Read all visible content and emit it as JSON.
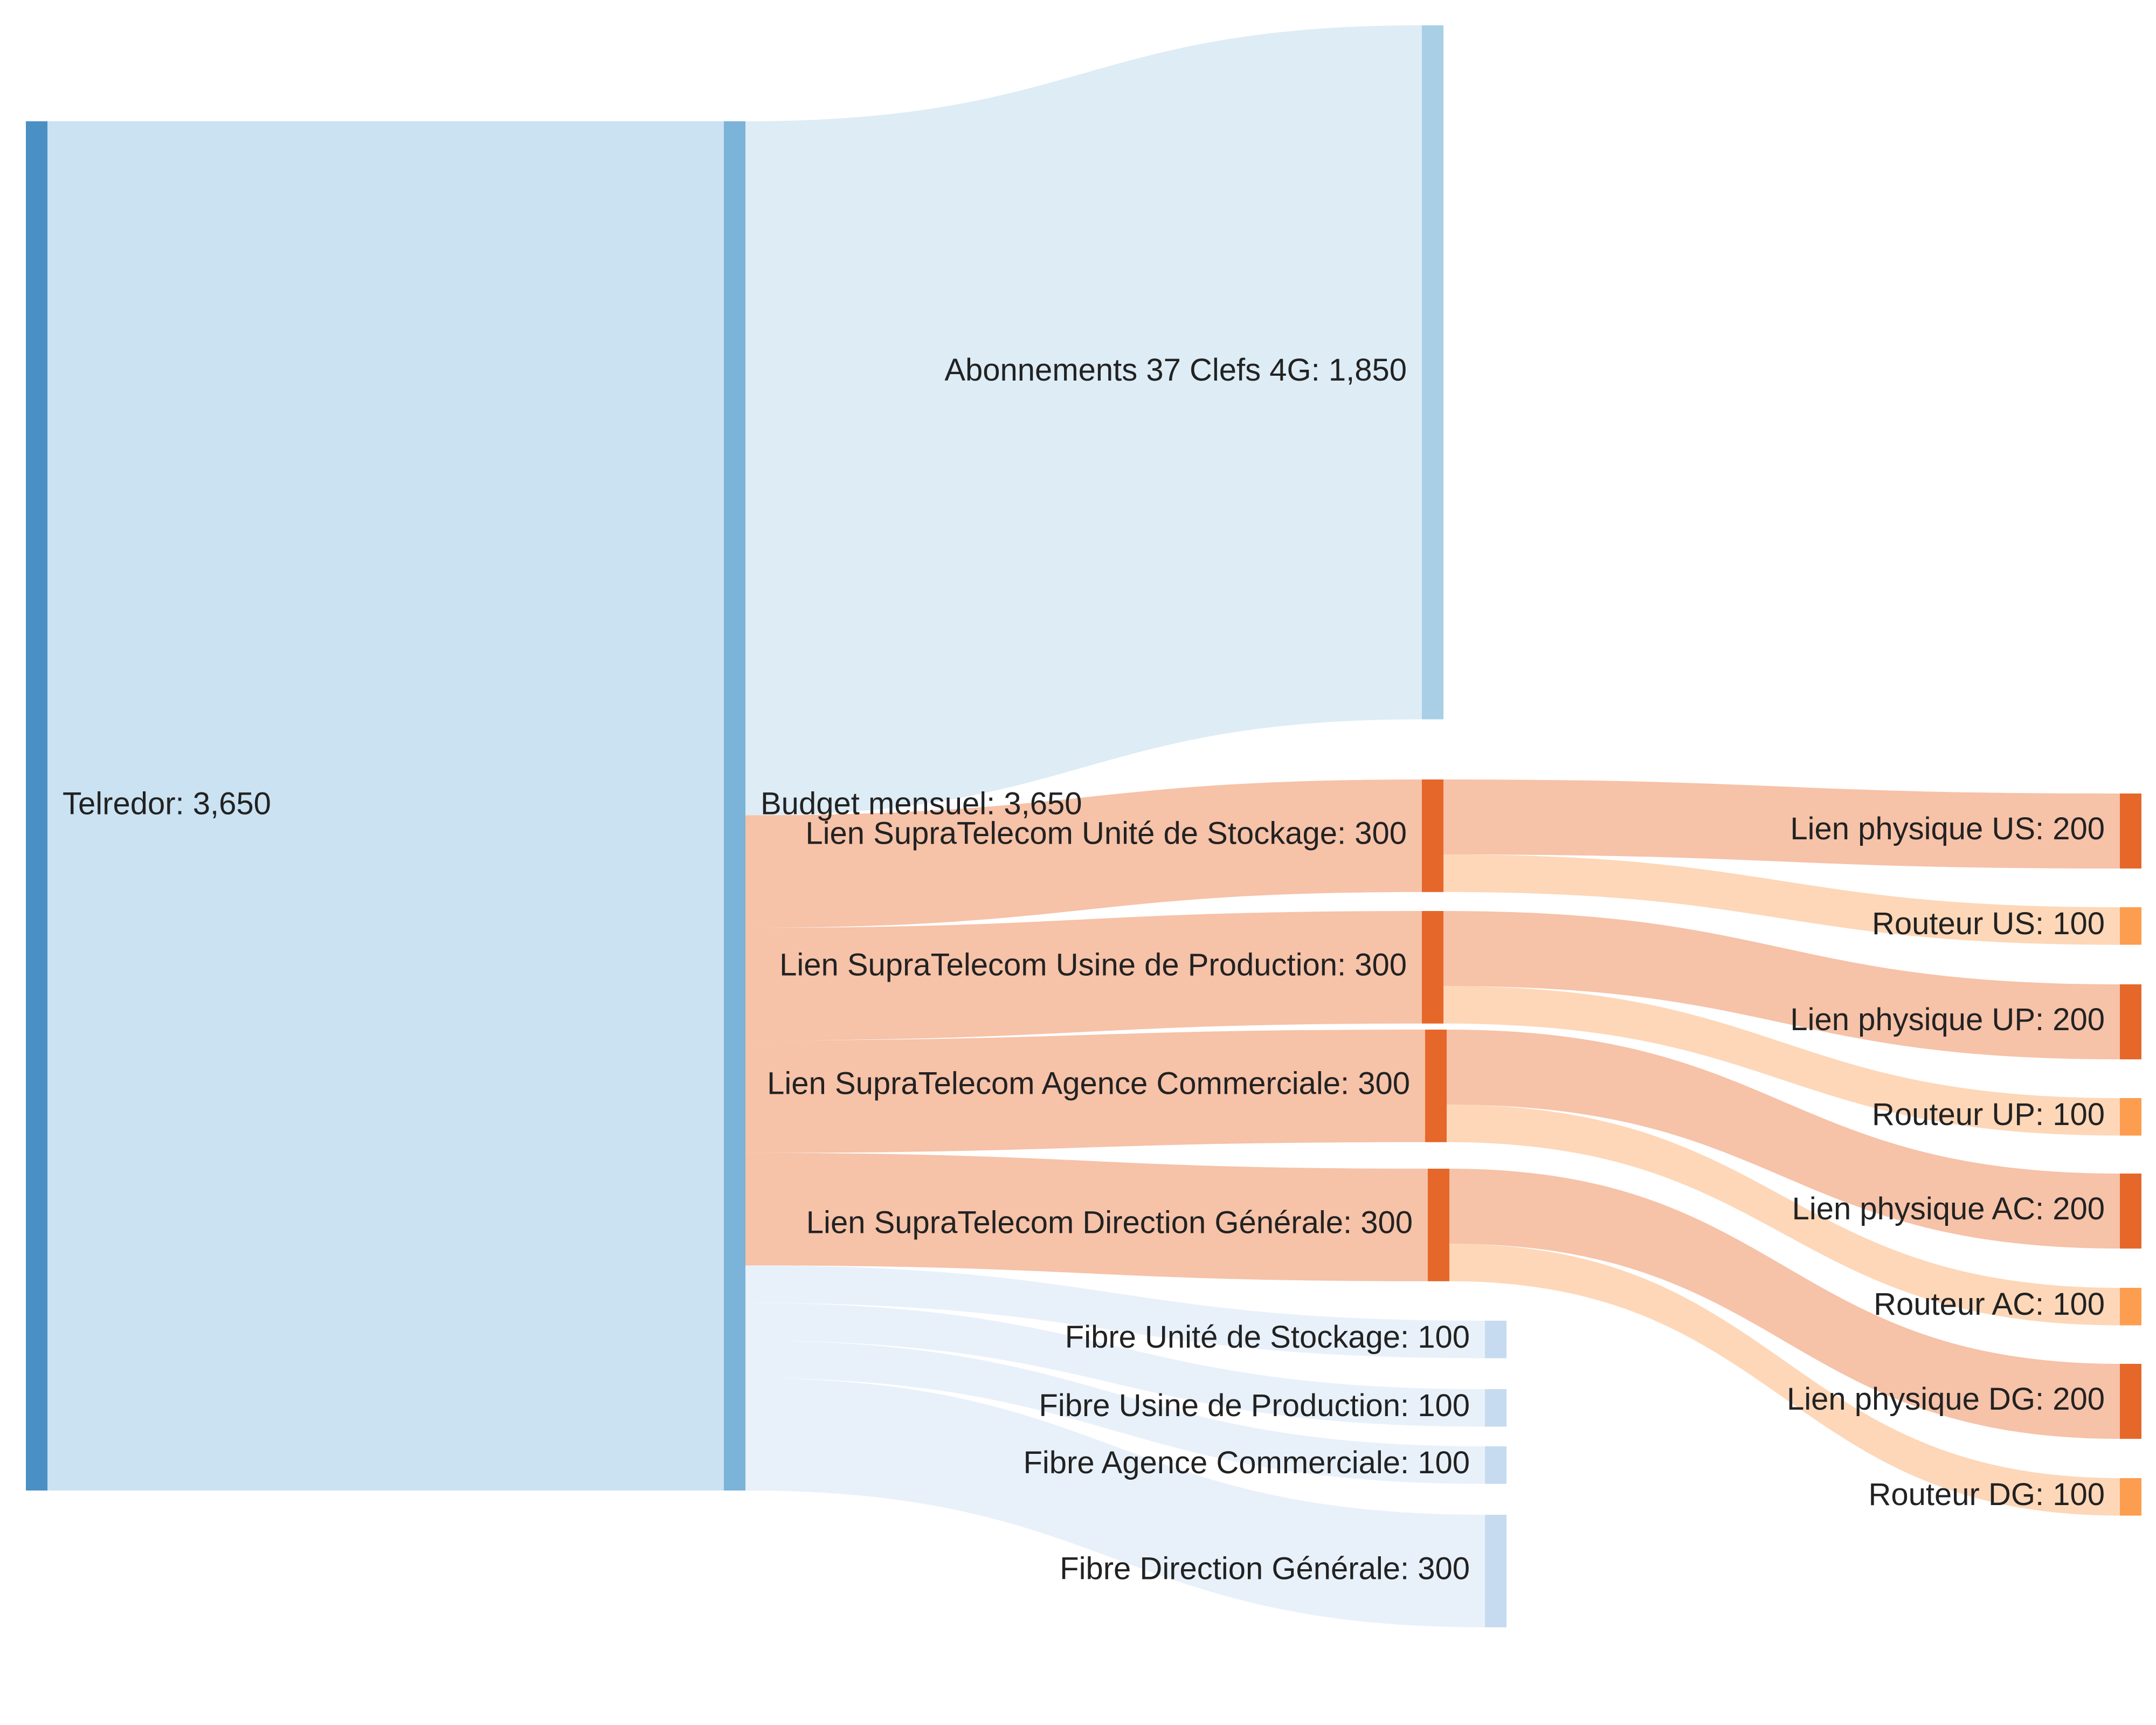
{
  "chart_data": {
    "type": "sankey",
    "title": "",
    "nodes": [
      {
        "id": "telredor",
        "label": "Telredor",
        "value": 3650,
        "color": "#4a90c4"
      },
      {
        "id": "budget",
        "label": "Budget mensuel",
        "value": 3650,
        "color": "#7bb3d9"
      },
      {
        "id": "clefs4g",
        "label": "Abonnements 37 Clefs 4G",
        "value": 1850,
        "color": "#a8cfe5"
      },
      {
        "id": "lien_us",
        "label": "Lien SupraTelecom Unité de Stockage",
        "value": 300,
        "color": "#e6672a"
      },
      {
        "id": "lien_up",
        "label": "Lien SupraTelecom Usine de Production",
        "value": 300,
        "color": "#e6672a"
      },
      {
        "id": "lien_ac",
        "label": "Lien SupraTelecom Agence Commerciale",
        "value": 300,
        "color": "#e6672a"
      },
      {
        "id": "lien_dg",
        "label": "Lien SupraTelecom Direction Générale",
        "value": 300,
        "color": "#e6672a"
      },
      {
        "id": "fibre_us",
        "label": "Fibre Unité de Stockage",
        "value": 100,
        "color": "#c6dbef"
      },
      {
        "id": "fibre_up",
        "label": "Fibre Usine de Production",
        "value": 100,
        "color": "#c6dbef"
      },
      {
        "id": "fibre_ac",
        "label": "Fibre Agence Commerciale",
        "value": 100,
        "color": "#c6dbef"
      },
      {
        "id": "fibre_dg",
        "label": "Fibre Direction Générale",
        "value": 300,
        "color": "#c6dbef"
      },
      {
        "id": "phys_us",
        "label": "Lien physique US",
        "value": 200,
        "color": "#e6672a"
      },
      {
        "id": "rout_us",
        "label": "Routeur US",
        "value": 100,
        "color": "#fd9d4f"
      },
      {
        "id": "phys_up",
        "label": "Lien physique UP",
        "value": 200,
        "color": "#e6672a"
      },
      {
        "id": "rout_up",
        "label": "Routeur UP",
        "value": 100,
        "color": "#fd9d4f"
      },
      {
        "id": "phys_ac",
        "label": "Lien physique AC",
        "value": 200,
        "color": "#e6672a"
      },
      {
        "id": "rout_ac",
        "label": "Routeur AC",
        "value": 100,
        "color": "#fd9d4f"
      },
      {
        "id": "phys_dg",
        "label": "Lien physique DG",
        "value": 200,
        "color": "#e6672a"
      },
      {
        "id": "rout_dg",
        "label": "Routeur DG",
        "value": 100,
        "color": "#fd9d4f"
      }
    ],
    "links": [
      {
        "source": "telredor",
        "target": "budget",
        "value": 3650
      },
      {
        "source": "budget",
        "target": "clefs4g",
        "value": 1850
      },
      {
        "source": "budget",
        "target": "lien_us",
        "value": 300
      },
      {
        "source": "budget",
        "target": "lien_up",
        "value": 300
      },
      {
        "source": "budget",
        "target": "lien_ac",
        "value": 300
      },
      {
        "source": "budget",
        "target": "lien_dg",
        "value": 300
      },
      {
        "source": "budget",
        "target": "fibre_us",
        "value": 100
      },
      {
        "source": "budget",
        "target": "fibre_up",
        "value": 100
      },
      {
        "source": "budget",
        "target": "fibre_ac",
        "value": 100
      },
      {
        "source": "budget",
        "target": "fibre_dg",
        "value": 300
      },
      {
        "source": "lien_us",
        "target": "phys_us",
        "value": 200
      },
      {
        "source": "lien_us",
        "target": "rout_us",
        "value": 100
      },
      {
        "source": "lien_up",
        "target": "phys_up",
        "value": 200
      },
      {
        "source": "lien_up",
        "target": "rout_up",
        "value": 100
      },
      {
        "source": "lien_ac",
        "target": "phys_ac",
        "value": 200
      },
      {
        "source": "lien_ac",
        "target": "rout_ac",
        "value": 100
      },
      {
        "source": "lien_dg",
        "target": "phys_dg",
        "value": 200
      },
      {
        "source": "lien_dg",
        "target": "rout_dg",
        "value": 100
      }
    ]
  }
}
